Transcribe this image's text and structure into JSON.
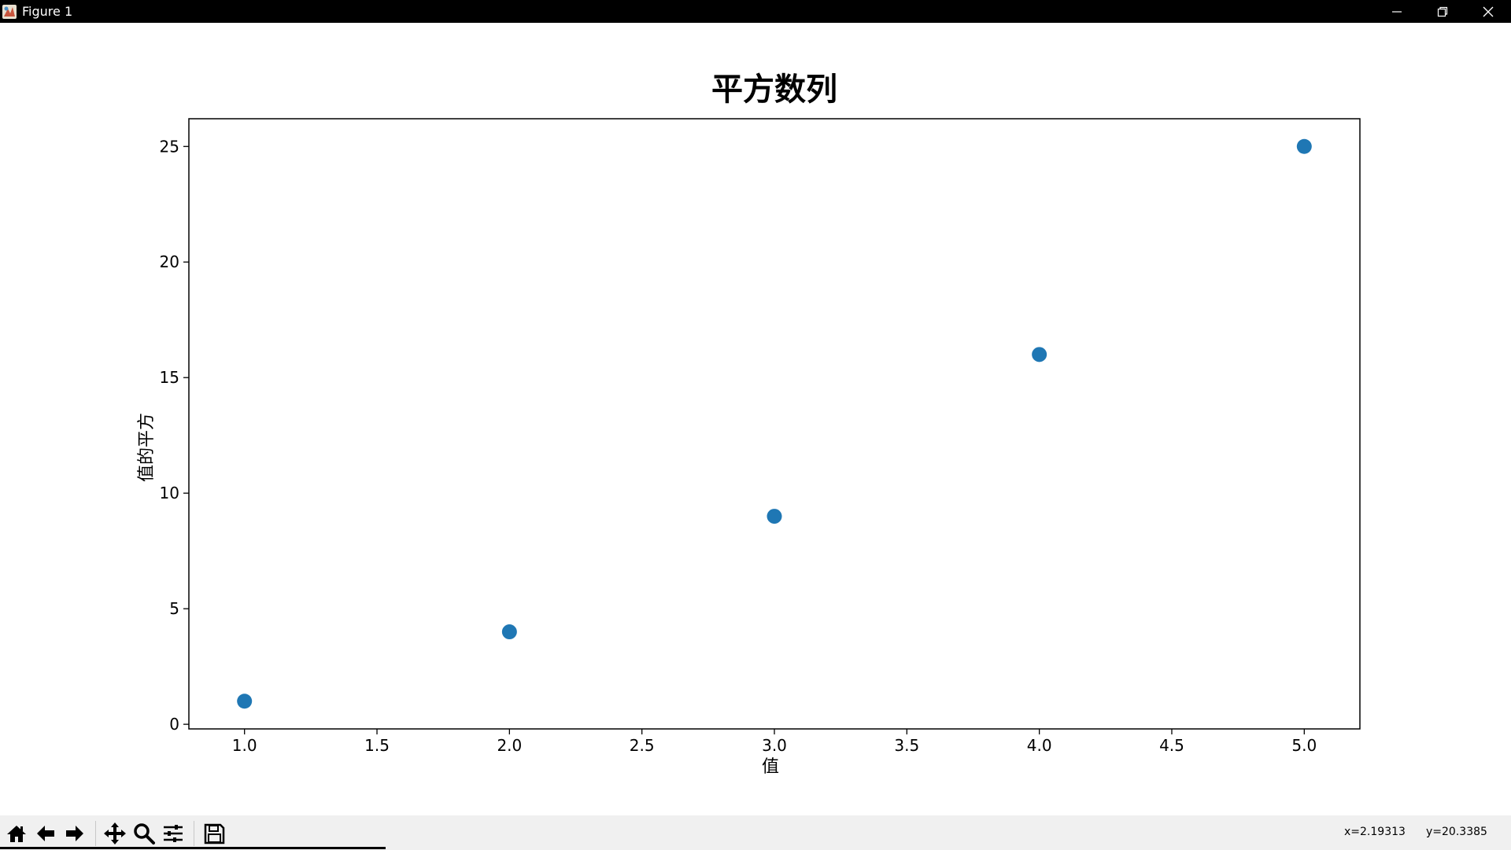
{
  "window": {
    "title": "Figure 1",
    "controls": [
      "minimize",
      "restore",
      "close"
    ]
  },
  "chart_data": {
    "type": "scatter",
    "title": "平方数列",
    "xlabel": "值",
    "ylabel": "值的平方",
    "x": [
      1,
      2,
      3,
      4,
      5
    ],
    "y": [
      1,
      4,
      9,
      16,
      25
    ],
    "xlim": [
      0.79,
      5.21
    ],
    "ylim": [
      -0.2,
      26.2
    ],
    "xticks": [
      1.0,
      1.5,
      2.0,
      2.5,
      3.0,
      3.5,
      4.0,
      4.5,
      5.0
    ],
    "xtick_labels": [
      "1.0",
      "1.5",
      "2.0",
      "2.5",
      "3.0",
      "3.5",
      "4.0",
      "4.5",
      "5.0"
    ],
    "yticks": [
      0,
      5,
      10,
      15,
      20,
      25
    ],
    "ytick_labels": [
      "0",
      "5",
      "10",
      "15",
      "20",
      "25"
    ],
    "color": "#1f77b4",
    "grid": false,
    "legend": "none"
  },
  "toolbar": {
    "buttons": [
      "home-icon",
      "back-icon",
      "forward-icon",
      "pan-icon",
      "zoom-icon",
      "configure-icon",
      "save-icon"
    ],
    "coord_x": "x=2.19313",
    "coord_y": "y=20.3385"
  }
}
